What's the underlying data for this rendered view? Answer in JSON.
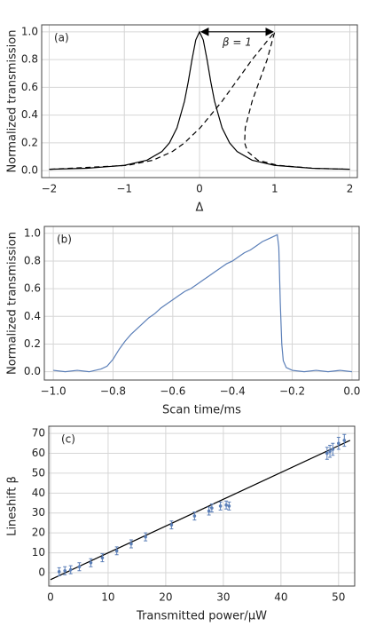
{
  "chart_data": [
    {
      "type": "line",
      "label": "(a)",
      "annotation": "β = 1",
      "xlabel": "Δ",
      "ylabel": "Normalized transmission",
      "xlim": [
        -2.1,
        2.1
      ],
      "ylim": [
        -0.05,
        1.05
      ],
      "grid": true,
      "xticks": [
        {
          "value": -2,
          "label": "−2"
        },
        {
          "value": -1,
          "label": "−1"
        },
        0,
        1,
        2
      ],
      "yticks": [
        {
          "value": 0,
          "label": "0.0"
        },
        0.2,
        0.4,
        0.6,
        0.8,
        {
          "value": 1,
          "label": "1.0"
        }
      ],
      "series": [
        {
          "color": "#000000",
          "dash": false,
          "x": [
            -2,
            -1.5,
            -1,
            -0.7,
            -0.5,
            -0.4,
            -0.3,
            -0.2,
            -0.15,
            -0.1,
            -0.05,
            0,
            0.05,
            0.1,
            0.15,
            0.2,
            0.3,
            0.4,
            0.5,
            0.7,
            1,
            1.5,
            2
          ],
          "values": [
            0.01,
            0.017,
            0.038,
            0.075,
            0.138,
            0.2,
            0.308,
            0.5,
            0.64,
            0.8,
            0.941,
            1,
            0.941,
            0.8,
            0.64,
            0.5,
            0.308,
            0.2,
            0.138,
            0.075,
            0.038,
            0.017,
            0.01
          ]
        },
        {
          "color": "#000000",
          "dash": true,
          "x": [
            -1.99,
            -0.96,
            -0.62,
            -0.36,
            -0.2,
            0.008,
            0.3,
            0.7,
            1,
            0.9,
            0.7,
            0.608,
            0.6,
            0.638,
            0.776,
            1.04,
            1.517,
            1.911
          ],
          "values": [
            0.01,
            0.038,
            0.075,
            0.138,
            0.2,
            0.308,
            0.5,
            0.8,
            1,
            0.8,
            0.5,
            0.308,
            0.2,
            0.138,
            0.075,
            0.038,
            0.017,
            0.011
          ]
        }
      ]
    },
    {
      "type": "line",
      "label": "(b)",
      "xlabel": "Scan time/ms",
      "ylabel": "Normalized transmission",
      "xlim": [
        -1.03,
        0.024
      ],
      "ylim": [
        -0.06,
        1.05
      ],
      "grid": true,
      "xticks": [
        {
          "value": -1,
          "label": "−1.0"
        },
        {
          "value": -0.8,
          "label": "−0.8"
        },
        {
          "value": -0.6,
          "label": "−0.6"
        },
        {
          "value": -0.4,
          "label": "−0.4"
        },
        {
          "value": -0.2,
          "label": "−0.2"
        },
        {
          "value": 0,
          "label": "0.0"
        }
      ],
      "yticks": [
        {
          "value": 0,
          "label": "0.0"
        },
        0.2,
        0.4,
        0.6,
        0.8,
        {
          "value": 1,
          "label": "1.0"
        }
      ],
      "series": [
        {
          "color": "#5b7fb8",
          "dash": false,
          "x": [
            -1.0,
            -0.96,
            -0.92,
            -0.88,
            -0.84,
            -0.82,
            -0.8,
            -0.78,
            -0.76,
            -0.74,
            -0.72,
            -0.7,
            -0.68,
            -0.66,
            -0.64,
            -0.62,
            -0.6,
            -0.58,
            -0.56,
            -0.54,
            -0.52,
            -0.5,
            -0.48,
            -0.46,
            -0.44,
            -0.42,
            -0.4,
            -0.38,
            -0.36,
            -0.34,
            -0.32,
            -0.3,
            -0.28,
            -0.26,
            -0.25,
            -0.245,
            -0.24,
            -0.235,
            -0.23,
            -0.22,
            -0.2,
            -0.16,
            -0.12,
            -0.08,
            -0.04,
            0.0
          ],
          "values": [
            0.01,
            0.0,
            0.01,
            0.0,
            0.02,
            0.04,
            0.09,
            0.16,
            0.22,
            0.27,
            0.31,
            0.35,
            0.39,
            0.42,
            0.46,
            0.49,
            0.52,
            0.55,
            0.58,
            0.6,
            0.63,
            0.66,
            0.69,
            0.72,
            0.75,
            0.78,
            0.8,
            0.83,
            0.86,
            0.88,
            0.91,
            0.94,
            0.96,
            0.98,
            0.99,
            0.9,
            0.5,
            0.2,
            0.08,
            0.03,
            0.01,
            0.0,
            0.01,
            0.0,
            0.01,
            0.0
          ]
        }
      ]
    },
    {
      "type": "scatter",
      "label": "(c)",
      "xlabel": "Transmitted power/μW",
      "ylabel": "Lineshift β",
      "xlim": [
        -0.3,
        52.8
      ],
      "ylim": [
        -6.7,
        73.6
      ],
      "grid": true,
      "xticks": [
        0,
        10,
        20,
        30,
        40,
        50
      ],
      "yticks": [
        0,
        10,
        20,
        30,
        40,
        50,
        60,
        70
      ],
      "series": [
        {
          "color": "#5b7fb8",
          "x": [
            1.5,
            2.5,
            3.5,
            5,
            7,
            9,
            11.5,
            14,
            16.5,
            21,
            25,
            27.5,
            28,
            29.5,
            30.5,
            31,
            48,
            48.5,
            49,
            50,
            51
          ],
          "values": [
            0.5,
            1,
            1.5,
            3,
            5,
            7.5,
            11,
            14.5,
            18,
            24,
            28.5,
            31,
            32.5,
            33.5,
            34,
            33.5,
            60,
            61,
            62,
            65,
            66.5
          ],
          "errors": [
            2,
            2,
            2,
            2,
            2,
            2,
            2,
            2,
            2,
            2,
            2,
            2,
            2,
            2,
            2,
            2,
            3,
            3,
            3,
            3,
            3
          ]
        }
      ],
      "fit_line": {
        "color": "#000000",
        "x": [
          0,
          52
        ],
        "values": [
          -3.5,
          66.5
        ]
      }
    }
  ]
}
